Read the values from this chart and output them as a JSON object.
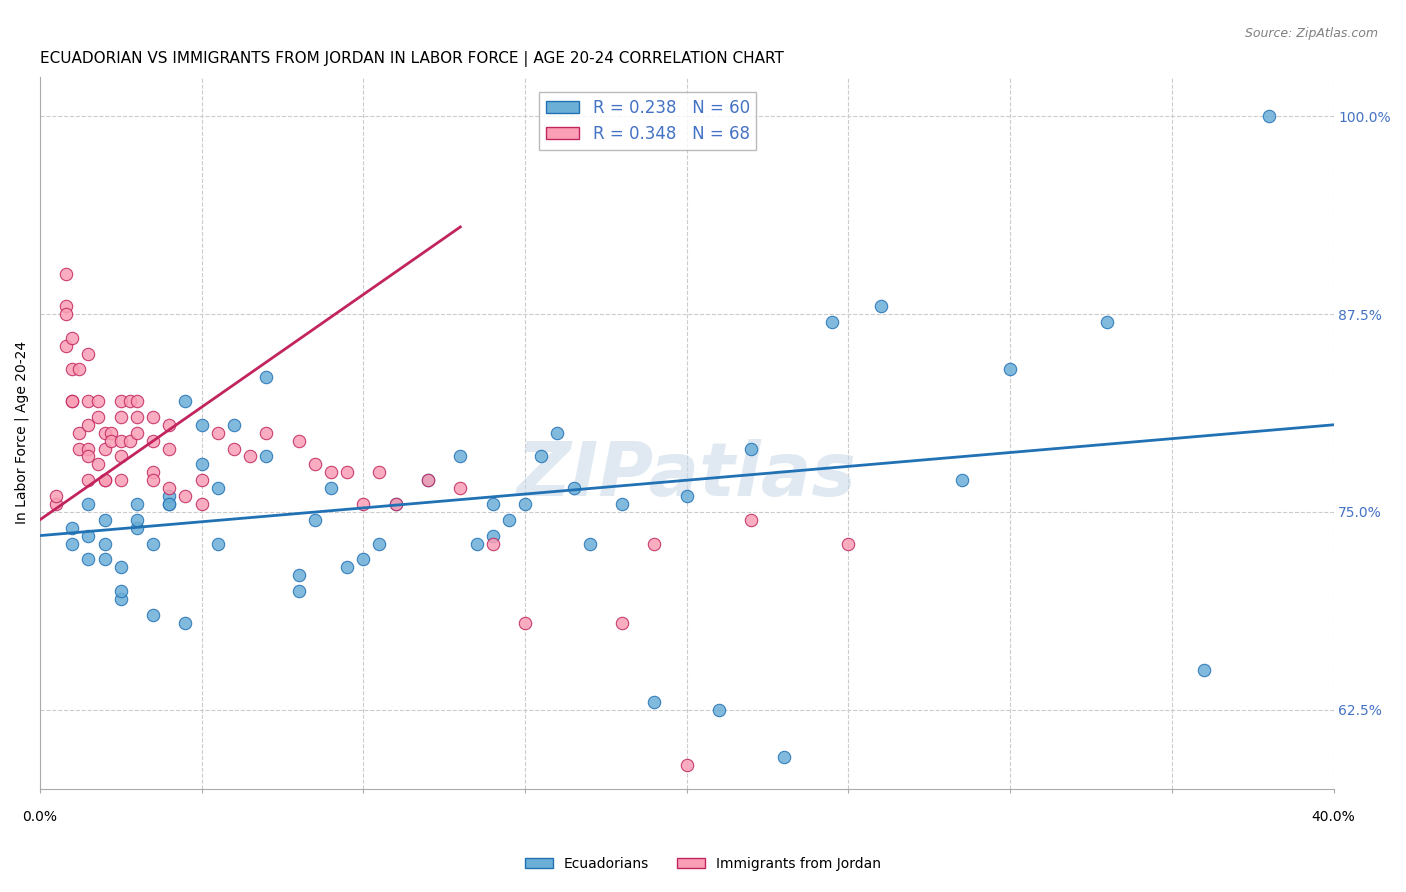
{
  "title": "ECUADORIAN VS IMMIGRANTS FROM JORDAN IN LABOR FORCE | AGE 20-24 CORRELATION CHART",
  "source": "Source: ZipAtlas.com",
  "ylabel": "In Labor Force | Age 20-24",
  "legend_blue_R": "R = 0.238",
  "legend_blue_N": "N = 60",
  "legend_pink_R": "R = 0.348",
  "legend_pink_N": "N = 68",
  "legend_blue_label": "Ecuadorians",
  "legend_pink_label": "Immigrants from Jordan",
  "xlim": [
    0.0,
    0.4
  ],
  "ylim": [
    0.575,
    1.025
  ],
  "yticks": [
    0.625,
    0.75,
    0.875,
    1.0
  ],
  "ytick_labels": [
    "62.5%",
    "75.0%",
    "87.5%",
    "100.0%"
  ],
  "xticks": [
    0.0,
    0.05,
    0.1,
    0.15,
    0.2,
    0.25,
    0.3,
    0.35,
    0.4
  ],
  "blue_color": "#6baed6",
  "pink_color": "#fa9fb5",
  "blue_line_color": "#2171b5",
  "pink_line_color": "#c2245e",
  "watermark": "ZIPatlas",
  "blue_scatter_x": [
    0.01,
    0.01,
    0.015,
    0.015,
    0.015,
    0.02,
    0.02,
    0.02,
    0.025,
    0.025,
    0.025,
    0.03,
    0.03,
    0.03,
    0.035,
    0.035,
    0.04,
    0.04,
    0.04,
    0.045,
    0.045,
    0.05,
    0.05,
    0.055,
    0.055,
    0.06,
    0.07,
    0.07,
    0.08,
    0.08,
    0.085,
    0.09,
    0.095,
    0.1,
    0.105,
    0.11,
    0.12,
    0.13,
    0.135,
    0.14,
    0.14,
    0.145,
    0.15,
    0.155,
    0.16,
    0.165,
    0.17,
    0.18,
    0.19,
    0.2,
    0.21,
    0.22,
    0.23,
    0.245,
    0.26,
    0.285,
    0.3,
    0.33,
    0.36,
    0.38
  ],
  "blue_scatter_y": [
    0.74,
    0.73,
    0.72,
    0.735,
    0.755,
    0.73,
    0.72,
    0.745,
    0.695,
    0.7,
    0.715,
    0.74,
    0.745,
    0.755,
    0.685,
    0.73,
    0.755,
    0.76,
    0.755,
    0.68,
    0.82,
    0.78,
    0.805,
    0.73,
    0.765,
    0.805,
    0.835,
    0.785,
    0.7,
    0.71,
    0.745,
    0.765,
    0.715,
    0.72,
    0.73,
    0.755,
    0.77,
    0.785,
    0.73,
    0.755,
    0.735,
    0.745,
    0.755,
    0.785,
    0.8,
    0.765,
    0.73,
    0.755,
    0.63,
    0.76,
    0.625,
    0.79,
    0.595,
    0.87,
    0.88,
    0.77,
    0.84,
    0.87,
    0.65,
    1.0
  ],
  "pink_scatter_x": [
    0.005,
    0.005,
    0.008,
    0.008,
    0.008,
    0.008,
    0.01,
    0.01,
    0.01,
    0.01,
    0.012,
    0.012,
    0.012,
    0.015,
    0.015,
    0.015,
    0.015,
    0.015,
    0.015,
    0.018,
    0.018,
    0.018,
    0.02,
    0.02,
    0.02,
    0.02,
    0.022,
    0.022,
    0.025,
    0.025,
    0.025,
    0.025,
    0.025,
    0.028,
    0.028,
    0.03,
    0.03,
    0.03,
    0.035,
    0.035,
    0.035,
    0.035,
    0.04,
    0.04,
    0.04,
    0.045,
    0.05,
    0.05,
    0.055,
    0.06,
    0.065,
    0.07,
    0.08,
    0.085,
    0.09,
    0.095,
    0.1,
    0.105,
    0.11,
    0.12,
    0.13,
    0.14,
    0.15,
    0.18,
    0.19,
    0.22,
    0.25,
    0.2
  ],
  "pink_scatter_y": [
    0.755,
    0.76,
    0.9,
    0.88,
    0.875,
    0.855,
    0.86,
    0.84,
    0.82,
    0.82,
    0.84,
    0.8,
    0.79,
    0.85,
    0.82,
    0.805,
    0.79,
    0.785,
    0.77,
    0.82,
    0.81,
    0.78,
    0.8,
    0.79,
    0.77,
    0.77,
    0.8,
    0.795,
    0.82,
    0.81,
    0.795,
    0.785,
    0.77,
    0.82,
    0.795,
    0.82,
    0.81,
    0.8,
    0.81,
    0.795,
    0.775,
    0.77,
    0.805,
    0.79,
    0.765,
    0.76,
    0.77,
    0.755,
    0.8,
    0.79,
    0.785,
    0.8,
    0.795,
    0.78,
    0.775,
    0.775,
    0.755,
    0.775,
    0.755,
    0.77,
    0.765,
    0.73,
    0.68,
    0.68,
    0.73,
    0.745,
    0.73,
    0.59
  ],
  "blue_line_x": [
    0.0,
    0.4
  ],
  "blue_line_y": [
    0.735,
    0.805
  ],
  "pink_line_x": [
    0.0,
    0.13
  ],
  "pink_line_y": [
    0.745,
    0.93
  ],
  "axis_color": "#4472c4",
  "title_fontsize": 11,
  "label_fontsize": 10,
  "tick_fontsize": 10,
  "legend_fontsize": 12
}
